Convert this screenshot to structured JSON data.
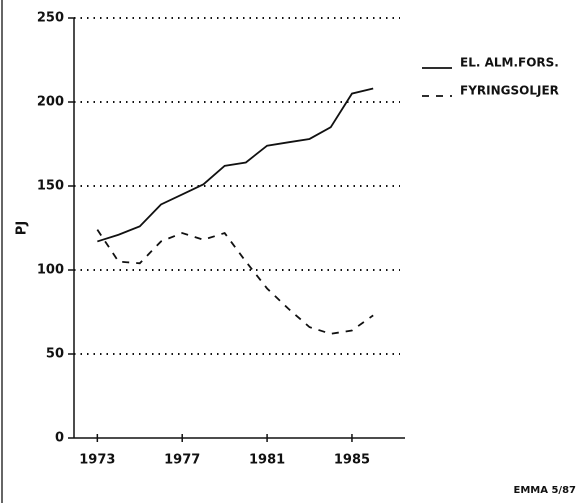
{
  "chart_data": {
    "type": "line",
    "y_label": "PJ",
    "annotation": "EMMA 5/87",
    "x": [
      1973,
      1974,
      1975,
      1976,
      1977,
      1978,
      1979,
      1980,
      1981,
      1982,
      1983,
      1984,
      1985,
      1986
    ],
    "series": [
      {
        "name": "EL. ALM.FORS.",
        "color": "#111111",
        "dash": "solid",
        "values": [
          117,
          121,
          126,
          139,
          145,
          151,
          162,
          164,
          174,
          176,
          178,
          185,
          205,
          208
        ]
      },
      {
        "name": "FYRINGSOLJER",
        "color": "#111111",
        "dash": "dashed",
        "values": [
          124,
          105,
          104,
          117,
          122,
          118,
          122,
          105,
          89,
          77,
          66,
          62,
          64,
          73
        ]
      }
    ],
    "xlim": [
      1971.9,
      1987.5
    ],
    "xticks": [
      1973,
      1977,
      1981,
      1985
    ],
    "ylim": [
      0,
      250
    ],
    "yticks": [
      0,
      50,
      100,
      150,
      200,
      250
    ],
    "grid": true,
    "legend": "right"
  }
}
